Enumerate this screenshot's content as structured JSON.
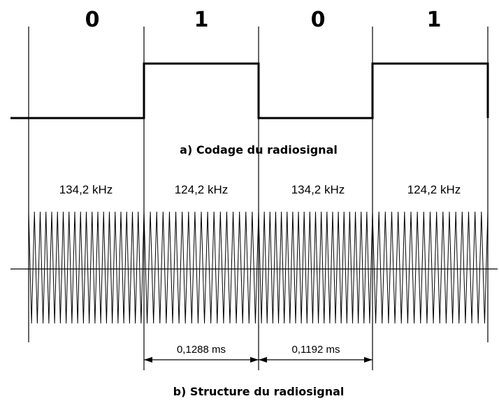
{
  "bits": [
    "0",
    "1",
    "0",
    "1"
  ],
  "caption_a": "a)  Codage du radiosignal",
  "frequencies": [
    "134,2 kHz",
    "124,2 kHz",
    "134,2 kHz",
    "124,2 kHz"
  ],
  "durations": [
    "0,1288 ms",
    "0,1192 ms"
  ],
  "caption_b": "b)  Structure du radiosignal"
}
